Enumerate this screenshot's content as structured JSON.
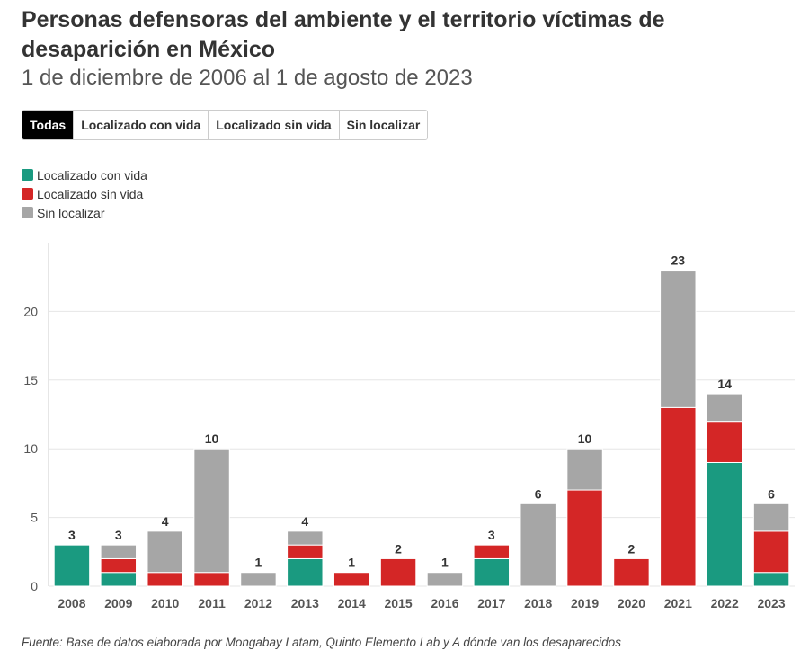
{
  "header": {
    "title": "Personas defensoras del ambiente y el territorio víctimas de desaparición en México",
    "subtitle": "1 de diciembre de 2006 al 1 de agosto de 2023"
  },
  "filters": [
    {
      "label": "Todas",
      "active": true
    },
    {
      "label": "Localizado con vida",
      "active": false
    },
    {
      "label": "Localizado sin vida",
      "active": false
    },
    {
      "label": "Sin localizar",
      "active": false
    }
  ],
  "source": "Fuente: Base de datos elaborada por Mongabay Latam, Quinto Elemento Lab y A dónde van los desaparecidos",
  "chart_data": {
    "type": "bar",
    "stacked": true,
    "title": "Personas defensoras del ambiente y el territorio víctimas de desaparición en México",
    "categories": [
      "2008",
      "2009",
      "2010",
      "2011",
      "2012",
      "2013",
      "2014",
      "2015",
      "2016",
      "2017",
      "2018",
      "2019",
      "2020",
      "2021",
      "2022",
      "2023"
    ],
    "series": [
      {
        "name": "Localizado con vida",
        "color": "#1a9a80",
        "values": [
          3,
          1,
          0,
          0,
          0,
          2,
          0,
          0,
          0,
          2,
          0,
          0,
          0,
          0,
          9,
          1
        ]
      },
      {
        "name": "Localizado sin vida",
        "color": "#d42626",
        "values": [
          0,
          1,
          1,
          1,
          0,
          1,
          1,
          2,
          0,
          1,
          0,
          7,
          2,
          13,
          3,
          3
        ]
      },
      {
        "name": "Sin localizar",
        "color": "#a6a6a6",
        "values": [
          0,
          1,
          3,
          9,
          1,
          1,
          0,
          0,
          1,
          0,
          6,
          3,
          0,
          10,
          2,
          2
        ]
      }
    ],
    "totals": [
      3,
      3,
      4,
      10,
      1,
      4,
      1,
      2,
      1,
      3,
      6,
      10,
      2,
      23,
      14,
      6
    ],
    "yticks": [
      0,
      5,
      10,
      15,
      20
    ],
    "ylim": [
      0,
      25
    ],
    "legend": "top-left",
    "grid": true
  }
}
